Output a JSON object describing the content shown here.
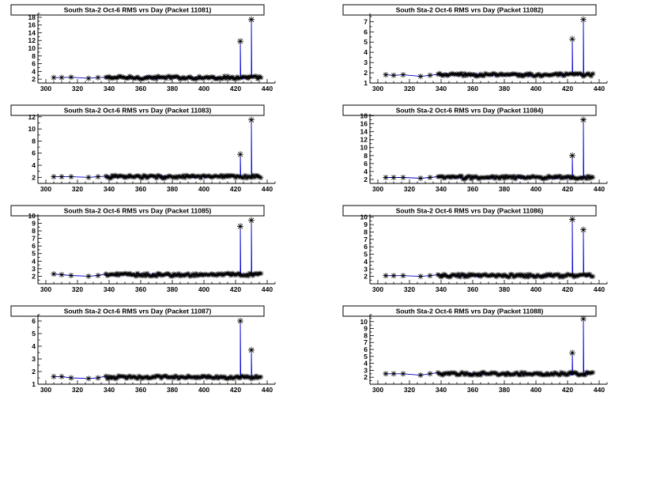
{
  "chart_data": [
    {
      "type": "line",
      "title": "South Sta-2 Oct-6 RMS vrs Day (Packet 11081)",
      "xlabel": "",
      "ylabel": "",
      "xlim": [
        295,
        445
      ],
      "ylim": [
        1,
        19
      ],
      "xticks": [
        300,
        320,
        340,
        360,
        380,
        400,
        420,
        440
      ],
      "yticks": [
        2,
        4,
        6,
        8,
        10,
        12,
        14,
        16,
        18
      ],
      "baseline": 2.4,
      "spikes": [
        [
          423,
          11.8
        ],
        [
          430,
          17.4
        ]
      ],
      "series": [
        {
          "values": [
            [
              305,
              2.4
            ],
            [
              310,
              2.4
            ],
            [
              316,
              2.5
            ],
            [
              327,
              2.2
            ],
            [
              333,
              2.4
            ],
            [
              423,
              11.8
            ],
            [
              430,
              17.4
            ]
          ]
        }
      ]
    },
    {
      "type": "line",
      "title": "South Sta-2 Oct-6 RMS vrs Day (Packet 11082)",
      "xlabel": "",
      "ylabel": "",
      "xlim": [
        295,
        445
      ],
      "ylim": [
        1,
        7.8
      ],
      "xticks": [
        300,
        320,
        340,
        360,
        380,
        400,
        420,
        440
      ],
      "yticks": [
        1,
        2,
        3,
        4,
        5,
        6,
        7
      ],
      "baseline": 1.8,
      "spikes": [
        [
          423,
          5.3
        ],
        [
          430,
          7.2
        ]
      ],
      "series": [
        {
          "values": [
            [
              305,
              1.8
            ],
            [
              310,
              1.75
            ],
            [
              316,
              1.8
            ],
            [
              327,
              1.65
            ],
            [
              333,
              1.75
            ],
            [
              423,
              5.3
            ],
            [
              430,
              7.2
            ]
          ]
        }
      ]
    },
    {
      "type": "line",
      "title": "South Sta-2 Oct-6 RMS vrs Day (Packet 11083)",
      "xlabel": "",
      "ylabel": "",
      "xlim": [
        295,
        445
      ],
      "ylim": [
        1,
        12.5
      ],
      "xticks": [
        300,
        320,
        340,
        360,
        380,
        400,
        420,
        440
      ],
      "yticks": [
        2,
        4,
        6,
        8,
        10,
        12
      ],
      "baseline": 2.1,
      "spikes": [
        [
          423,
          5.8
        ],
        [
          430,
          11.5
        ]
      ],
      "series": [
        {
          "values": [
            [
              305,
              2.1
            ],
            [
              310,
              2.1
            ],
            [
              316,
              2.1
            ],
            [
              327,
              2.0
            ],
            [
              333,
              2.1
            ],
            [
              423,
              5.8
            ],
            [
              430,
              11.5
            ]
          ]
        }
      ]
    },
    {
      "type": "line",
      "title": "South Sta-2 Oct-6 RMS vrs Day (Packet 11084)",
      "xlabel": "",
      "ylabel": "",
      "xlim": [
        295,
        445
      ],
      "ylim": [
        1,
        18.5
      ],
      "xticks": [
        300,
        320,
        340,
        360,
        380,
        400,
        420,
        440
      ],
      "yticks": [
        2,
        4,
        6,
        8,
        10,
        12,
        14,
        16,
        18
      ],
      "baseline": 2.5,
      "spikes": [
        [
          423,
          8.0
        ],
        [
          430,
          17.0
        ]
      ],
      "series": [
        {
          "values": [
            [
              305,
              2.5
            ],
            [
              310,
              2.5
            ],
            [
              316,
              2.5
            ],
            [
              327,
              2.3
            ],
            [
              333,
              2.5
            ],
            [
              423,
              8.0
            ],
            [
              430,
              17.0
            ]
          ]
        }
      ]
    },
    {
      "type": "line",
      "title": "South Sta-2 Oct-6 RMS vrs Day (Packet 11085)",
      "xlabel": "",
      "ylabel": "",
      "xlim": [
        295,
        445
      ],
      "ylim": [
        1,
        10.2
      ],
      "xticks": [
        300,
        320,
        340,
        360,
        380,
        400,
        420,
        440
      ],
      "yticks": [
        2,
        3,
        4,
        5,
        6,
        7,
        8,
        9,
        10
      ],
      "baseline": 2.2,
      "spikes": [
        [
          423,
          8.6
        ],
        [
          430,
          9.4
        ]
      ],
      "series": [
        {
          "values": [
            [
              305,
              2.3
            ],
            [
              310,
              2.2
            ],
            [
              316,
              2.1
            ],
            [
              327,
              2.0
            ],
            [
              333,
              2.1
            ],
            [
              423,
              8.6
            ],
            [
              430,
              9.4
            ]
          ]
        }
      ]
    },
    {
      "type": "line",
      "title": "South Sta-2 Oct-6 RMS vrs Day (Packet 11086)",
      "xlabel": "",
      "ylabel": "",
      "xlim": [
        295,
        445
      ],
      "ylim": [
        1,
        10.4
      ],
      "xticks": [
        300,
        320,
        340,
        360,
        380,
        400,
        420,
        440
      ],
      "yticks": [
        2,
        3,
        4,
        5,
        6,
        7,
        8,
        9,
        10
      ],
      "baseline": 2.1,
      "spikes": [
        [
          423,
          9.7
        ],
        [
          430,
          8.3
        ]
      ],
      "series": [
        {
          "values": [
            [
              305,
              2.1
            ],
            [
              310,
              2.1
            ],
            [
              316,
              2.1
            ],
            [
              327,
              2.0
            ],
            [
              333,
              2.1
            ],
            [
              423,
              9.7
            ],
            [
              430,
              8.3
            ]
          ]
        }
      ]
    },
    {
      "type": "line",
      "title": "South Sta-2 Oct-6 RMS vrs Day (Packet 11087)",
      "xlabel": "",
      "ylabel": "",
      "xlim": [
        295,
        445
      ],
      "ylim": [
        1,
        6.5
      ],
      "xticks": [
        300,
        320,
        340,
        360,
        380,
        400,
        420,
        440
      ],
      "yticks": [
        1,
        2,
        3,
        4,
        5,
        6
      ],
      "baseline": 1.55,
      "spikes": [
        [
          423,
          6.0
        ],
        [
          430,
          3.7
        ]
      ],
      "series": [
        {
          "values": [
            [
              305,
              1.6
            ],
            [
              310,
              1.6
            ],
            [
              316,
              1.5
            ],
            [
              327,
              1.45
            ],
            [
              333,
              1.5
            ],
            [
              423,
              6.0
            ],
            [
              430,
              3.7
            ]
          ]
        }
      ]
    },
    {
      "type": "line",
      "title": "South Sta-2 Oct-6 RMS vrs Day (Packet 11088)",
      "xlabel": "",
      "ylabel": "",
      "xlim": [
        295,
        445
      ],
      "ylim": [
        1,
        11
      ],
      "xticks": [
        300,
        320,
        340,
        360,
        380,
        400,
        420,
        440
      ],
      "yticks": [
        2,
        3,
        4,
        5,
        6,
        7,
        8,
        9,
        10
      ],
      "baseline": 2.5,
      "spikes": [
        [
          423,
          5.5
        ],
        [
          430,
          10.4
        ]
      ],
      "series": [
        {
          "values": [
            [
              305,
              2.5
            ],
            [
              310,
              2.5
            ],
            [
              316,
              2.5
            ],
            [
              327,
              2.3
            ],
            [
              333,
              2.5
            ],
            [
              423,
              5.5
            ],
            [
              430,
              10.4
            ]
          ]
        }
      ]
    }
  ],
  "colors": {
    "axis": "#000000",
    "line": "#0000cc",
    "marker": "#000000",
    "background": "#ffffff"
  }
}
